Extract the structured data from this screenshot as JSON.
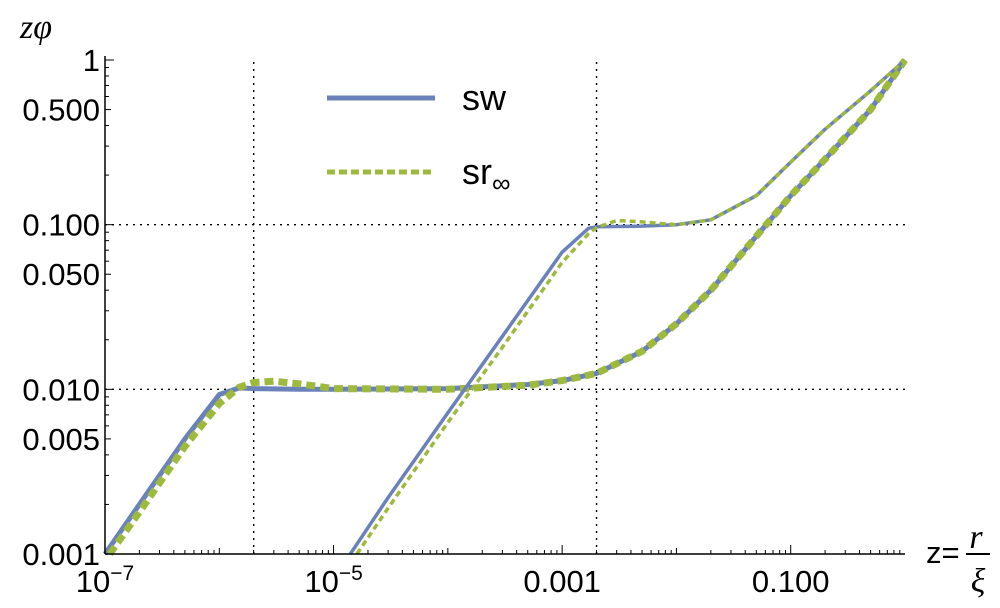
{
  "chart_data": {
    "type": "line",
    "xscale": "log",
    "yscale": "log",
    "xlim": [
      1e-07,
      1
    ],
    "ylim": [
      0.001,
      1
    ],
    "ylabel": "zφ",
    "xlabel": {
      "prefix": "z=",
      "numerator": "r",
      "denominator": "ξ"
    },
    "x_ticks": [
      {
        "value": 1e-07,
        "mantissa": "10",
        "exp": "−7"
      },
      {
        "value": 1e-05,
        "mantissa": "10",
        "exp": "−5"
      },
      {
        "value": 0.001,
        "label": "0.001"
      },
      {
        "value": 0.1,
        "label": "0.100"
      }
    ],
    "y_ticks": [
      {
        "value": 1,
        "label": "1"
      },
      {
        "value": 0.5,
        "label": "0.500"
      },
      {
        "value": 0.1,
        "label": "0.100"
      },
      {
        "value": 0.05,
        "label": "0.050"
      },
      {
        "value": 0.01,
        "label": "0.010"
      },
      {
        "value": 0.005,
        "label": "0.005"
      },
      {
        "value": 0.001,
        "label": "0.001"
      }
    ],
    "reference_lines": {
      "vertical_x": [
        2e-06,
        0.002
      ],
      "horizontal_y": [
        0.01,
        0.1
      ]
    },
    "legend": [
      {
        "label": "sw",
        "sub": "",
        "color": "#6b81b9",
        "style": "solid"
      },
      {
        "label": "sr",
        "sub": "∞",
        "color": "#9dba3c",
        "style": "dashed"
      }
    ],
    "series": [
      {
        "name": "sw",
        "color": "#6b81b9",
        "style": "solid",
        "width": 5,
        "points": [
          [
            1e-07,
            0.001
          ],
          [
            2e-07,
            0.002
          ],
          [
            5e-07,
            0.005
          ],
          [
            1e-06,
            0.0093
          ],
          [
            1.5e-06,
            0.0102
          ],
          [
            2e-06,
            0.0101
          ],
          [
            5e-06,
            0.01
          ],
          [
            1e-05,
            0.01
          ],
          [
            0.0001,
            0.0101
          ],
          [
            0.0005,
            0.0107
          ],
          [
            0.001,
            0.0113
          ],
          [
            0.002,
            0.0125
          ],
          [
            0.005,
            0.017
          ],
          [
            0.01,
            0.025
          ],
          [
            0.02,
            0.04
          ],
          [
            0.05,
            0.085
          ],
          [
            0.1,
            0.15
          ],
          [
            0.2,
            0.25
          ],
          [
            0.5,
            0.5
          ],
          [
            1,
            1
          ]
        ]
      },
      {
        "name": "sr∞",
        "color": "#9dba3c",
        "style": "dashed",
        "width": 7,
        "points": [
          [
            1.1e-07,
            0.001
          ],
          [
            2e-07,
            0.0018
          ],
          [
            5e-07,
            0.0045
          ],
          [
            1e-06,
            0.0082
          ],
          [
            1.5e-06,
            0.0103
          ],
          [
            2e-06,
            0.011
          ],
          [
            3e-06,
            0.0112
          ],
          [
            5e-06,
            0.0108
          ],
          [
            1e-05,
            0.0101
          ],
          [
            0.0001,
            0.01
          ],
          [
            0.0005,
            0.0106
          ],
          [
            0.001,
            0.0113
          ],
          [
            0.002,
            0.0125
          ],
          [
            0.005,
            0.017
          ],
          [
            0.01,
            0.025
          ],
          [
            0.02,
            0.04
          ],
          [
            0.05,
            0.085
          ],
          [
            0.1,
            0.15
          ],
          [
            0.2,
            0.25
          ],
          [
            0.5,
            0.5
          ],
          [
            1,
            1
          ]
        ]
      },
      {
        "name": "sw",
        "color": "#6b81b9",
        "style": "solid",
        "width": 3.5,
        "points": [
          [
            1.4e-05,
            0.001
          ],
          [
            3e-05,
            0.0022
          ],
          [
            0.0001,
            0.0072
          ],
          [
            0.0003,
            0.021
          ],
          [
            0.001,
            0.068
          ],
          [
            0.0017,
            0.095
          ],
          [
            0.002,
            0.097
          ],
          [
            0.005,
            0.098
          ],
          [
            0.01,
            0.1
          ],
          [
            0.02,
            0.107
          ],
          [
            0.05,
            0.15
          ],
          [
            0.1,
            0.24
          ],
          [
            0.2,
            0.38
          ],
          [
            0.5,
            0.65
          ],
          [
            1,
            1
          ]
        ]
      },
      {
        "name": "sr∞",
        "color": "#9dba3c",
        "style": "dashed",
        "width": 3.5,
        "points": [
          [
            1.6e-05,
            0.001
          ],
          [
            3e-05,
            0.0019
          ],
          [
            0.0001,
            0.0063
          ],
          [
            0.0003,
            0.018
          ],
          [
            0.001,
            0.059
          ],
          [
            0.0017,
            0.088
          ],
          [
            0.002,
            0.096
          ],
          [
            0.003,
            0.106
          ],
          [
            0.005,
            0.104
          ],
          [
            0.01,
            0.1
          ],
          [
            0.02,
            0.107
          ],
          [
            0.05,
            0.15
          ],
          [
            0.1,
            0.24
          ],
          [
            0.2,
            0.38
          ],
          [
            0.5,
            0.65
          ],
          [
            1,
            1
          ]
        ]
      }
    ]
  }
}
